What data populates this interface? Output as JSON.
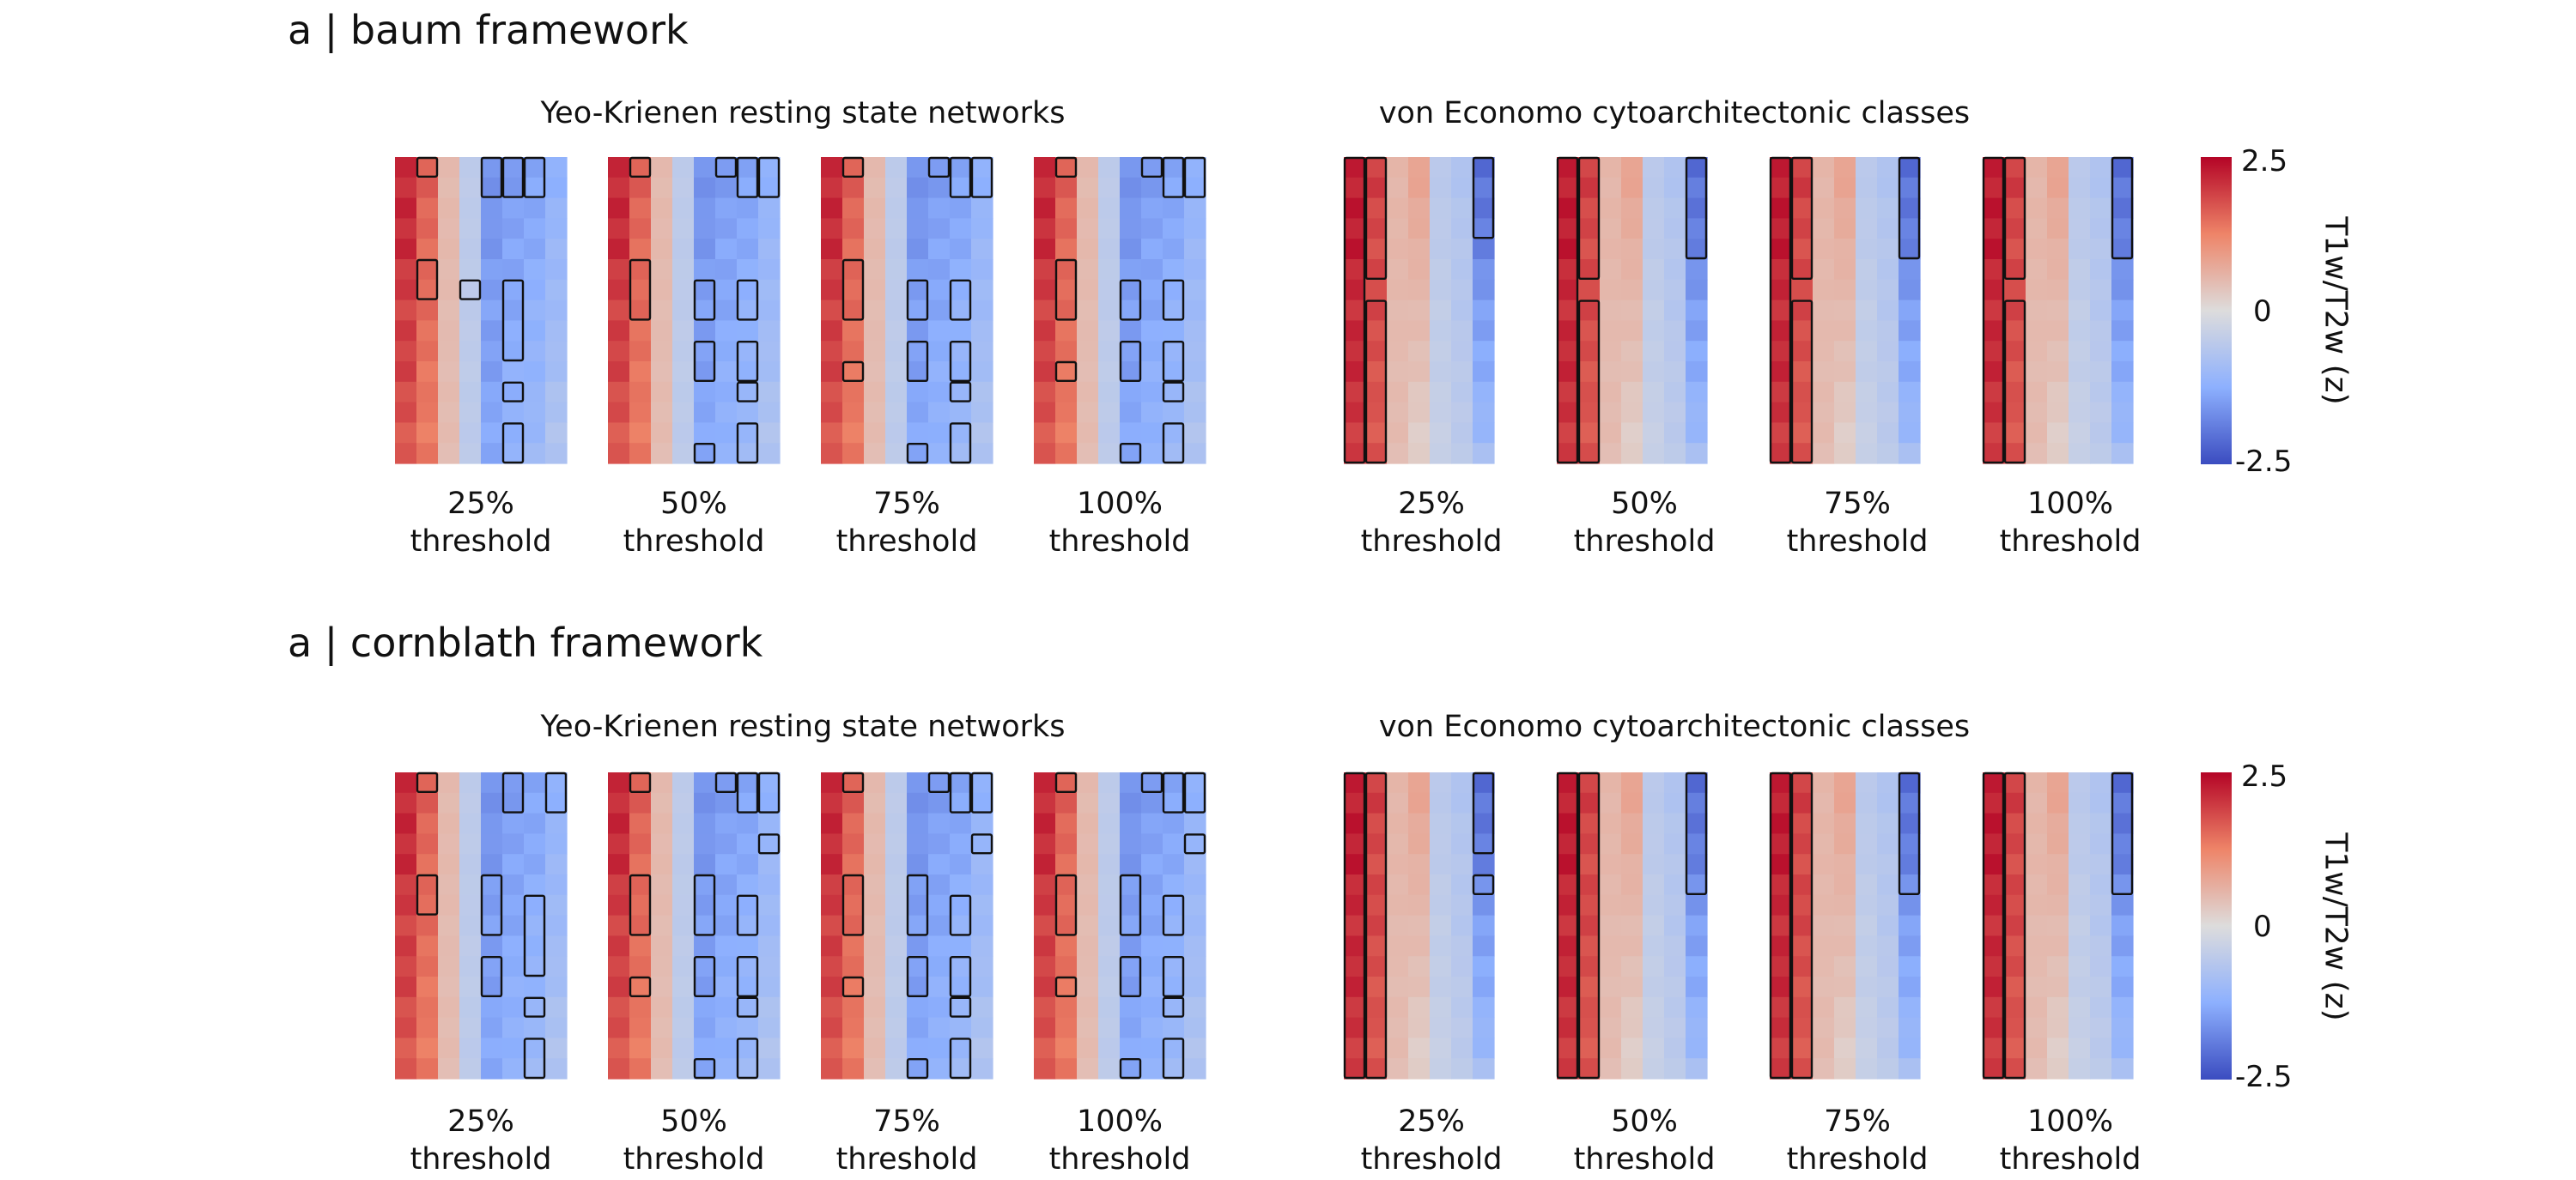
{
  "sections": [
    {
      "title": "a | baum framework",
      "groups": [
        {
          "title": "Yeo-Krienen resting state networks",
          "thresholds": [
            {
              "l1": "25%",
              "l2": "threshold"
            },
            {
              "l1": "50%",
              "l2": "threshold"
            },
            {
              "l1": "75%",
              "l2": "threshold"
            },
            {
              "l1": "100%",
              "l2": "threshold"
            }
          ]
        },
        {
          "title": "von Economo cytoarchitectonic classes",
          "thresholds": [
            {
              "l1": "25%",
              "l2": "threshold"
            },
            {
              "l1": "50%",
              "l2": "threshold"
            },
            {
              "l1": "75%",
              "l2": "threshold"
            },
            {
              "l1": "100%",
              "l2": "threshold"
            }
          ]
        }
      ],
      "colorbar": {
        "max": "2.5",
        "mid": "0",
        "min": "-2.5",
        "label": "T1w/T2w (z)"
      }
    },
    {
      "title": "a | cornblath framework",
      "groups": [
        {
          "title": "Yeo-Krienen resting state networks",
          "thresholds": [
            {
              "l1": "25%",
              "l2": "threshold"
            },
            {
              "l1": "50%",
              "l2": "threshold"
            },
            {
              "l1": "75%",
              "l2": "threshold"
            },
            {
              "l1": "100%",
              "l2": "threshold"
            }
          ]
        },
        {
          "title": "von Economo cytoarchitectonic classes",
          "thresholds": [
            {
              "l1": "25%",
              "l2": "threshold"
            },
            {
              "l1": "50%",
              "l2": "threshold"
            },
            {
              "l1": "75%",
              "l2": "threshold"
            },
            {
              "l1": "100%",
              "l2": "threshold"
            }
          ]
        }
      ],
      "colorbar": {
        "max": "2.5",
        "mid": "0",
        "min": "-2.5",
        "label": "T1w/T2w (z)"
      }
    }
  ],
  "chart_data": {
    "type": "heatmap",
    "colormap": "coolwarm",
    "zlim": [
      -2.5,
      2.5
    ],
    "rows": 15,
    "yeo": {
      "columns": 8,
      "column_profiles": [
        {
          "top": 2.2,
          "bottom": 1.7
        },
        {
          "top": 1.6,
          "bottom": 1.35
        },
        {
          "top": 0.5,
          "bottom": 0.45
        },
        {
          "top": -0.5,
          "bottom": -0.5
        },
        {
          "top": -1.6,
          "bottom": -1.35
        },
        {
          "top": -1.5,
          "bottom": -1.15
        },
        {
          "top": -1.4,
          "bottom": -1.0
        },
        {
          "top": -1.2,
          "bottom": -0.7
        }
      ],
      "baum_outlines": [
        [
          {
            "c": 1,
            "r0": 0,
            "r1": 0
          },
          {
            "c": 1,
            "r0": 5,
            "r1": 6
          },
          {
            "c": 3,
            "r0": 6,
            "r1": 6
          },
          {
            "c": 4,
            "r0": 0,
            "r1": 1
          },
          {
            "c": 5,
            "r0": 0,
            "r1": 1
          },
          {
            "c": 5,
            "r0": 6,
            "r1": 9
          },
          {
            "c": 5,
            "r0": 11,
            "r1": 11
          },
          {
            "c": 5,
            "r0": 13,
            "r1": 14
          },
          {
            "c": 6,
            "r0": 0,
            "r1": 1
          }
        ],
        [
          {
            "c": 1,
            "r0": 0,
            "r1": 0
          },
          {
            "c": 1,
            "r0": 5,
            "r1": 7
          },
          {
            "c": 4,
            "r0": 6,
            "r1": 7
          },
          {
            "c": 4,
            "r0": 9,
            "r1": 10
          },
          {
            "c": 4,
            "r0": 14,
            "r1": 14
          },
          {
            "c": 5,
            "r0": 0,
            "r1": 0
          },
          {
            "c": 6,
            "r0": 0,
            "r1": 1
          },
          {
            "c": 6,
            "r0": 6,
            "r1": 7
          },
          {
            "c": 6,
            "r0": 9,
            "r1": 10
          },
          {
            "c": 6,
            "r0": 11,
            "r1": 11
          },
          {
            "c": 6,
            "r0": 13,
            "r1": 14
          },
          {
            "c": 7,
            "r0": 0,
            "r1": 1
          }
        ],
        [
          {
            "c": 1,
            "r0": 0,
            "r1": 0
          },
          {
            "c": 1,
            "r0": 5,
            "r1": 7
          },
          {
            "c": 1,
            "r0": 10,
            "r1": 10
          },
          {
            "c": 4,
            "r0": 6,
            "r1": 7
          },
          {
            "c": 4,
            "r0": 9,
            "r1": 10
          },
          {
            "c": 4,
            "r0": 14,
            "r1": 14
          },
          {
            "c": 5,
            "r0": 0,
            "r1": 0
          },
          {
            "c": 6,
            "r0": 0,
            "r1": 1
          },
          {
            "c": 6,
            "r0": 6,
            "r1": 7
          },
          {
            "c": 6,
            "r0": 9,
            "r1": 10
          },
          {
            "c": 6,
            "r0": 11,
            "r1": 11
          },
          {
            "c": 6,
            "r0": 13,
            "r1": 14
          },
          {
            "c": 7,
            "r0": 0,
            "r1": 1
          }
        ],
        [
          {
            "c": 1,
            "r0": 0,
            "r1": 0
          },
          {
            "c": 1,
            "r0": 5,
            "r1": 7
          },
          {
            "c": 1,
            "r0": 10,
            "r1": 10
          },
          {
            "c": 4,
            "r0": 6,
            "r1": 7
          },
          {
            "c": 4,
            "r0": 9,
            "r1": 10
          },
          {
            "c": 4,
            "r0": 14,
            "r1": 14
          },
          {
            "c": 5,
            "r0": 0,
            "r1": 0
          },
          {
            "c": 6,
            "r0": 0,
            "r1": 1
          },
          {
            "c": 6,
            "r0": 6,
            "r1": 7
          },
          {
            "c": 6,
            "r0": 9,
            "r1": 10
          },
          {
            "c": 6,
            "r0": 11,
            "r1": 11
          },
          {
            "c": 6,
            "r0": 13,
            "r1": 14
          },
          {
            "c": 7,
            "r0": 0,
            "r1": 1
          }
        ]
      ],
      "cornblath_outlines": [
        [
          {
            "c": 1,
            "r0": 0,
            "r1": 0
          },
          {
            "c": 1,
            "r0": 5,
            "r1": 6
          },
          {
            "c": 4,
            "r0": 5,
            "r1": 7
          },
          {
            "c": 4,
            "r0": 9,
            "r1": 10
          },
          {
            "c": 5,
            "r0": 0,
            "r1": 1
          },
          {
            "c": 6,
            "r0": 6,
            "r1": 9
          },
          {
            "c": 6,
            "r0": 11,
            "r1": 11
          },
          {
            "c": 6,
            "r0": 13,
            "r1": 14
          },
          {
            "c": 7,
            "r0": 0,
            "r1": 1
          }
        ],
        [
          {
            "c": 1,
            "r0": 0,
            "r1": 0
          },
          {
            "c": 1,
            "r0": 5,
            "r1": 7
          },
          {
            "c": 1,
            "r0": 10,
            "r1": 10
          },
          {
            "c": 4,
            "r0": 5,
            "r1": 7
          },
          {
            "c": 4,
            "r0": 9,
            "r1": 10
          },
          {
            "c": 4,
            "r0": 14,
            "r1": 14
          },
          {
            "c": 5,
            "r0": 0,
            "r1": 0
          },
          {
            "c": 6,
            "r0": 0,
            "r1": 1
          },
          {
            "c": 6,
            "r0": 6,
            "r1": 7
          },
          {
            "c": 6,
            "r0": 9,
            "r1": 10
          },
          {
            "c": 6,
            "r0": 11,
            "r1": 11
          },
          {
            "c": 6,
            "r0": 13,
            "r1": 14
          },
          {
            "c": 7,
            "r0": 0,
            "r1": 1
          },
          {
            "c": 7,
            "r0": 3,
            "r1": 3
          }
        ],
        [
          {
            "c": 1,
            "r0": 0,
            "r1": 0
          },
          {
            "c": 1,
            "r0": 5,
            "r1": 7
          },
          {
            "c": 1,
            "r0": 10,
            "r1": 10
          },
          {
            "c": 4,
            "r0": 5,
            "r1": 7
          },
          {
            "c": 4,
            "r0": 9,
            "r1": 10
          },
          {
            "c": 4,
            "r0": 14,
            "r1": 14
          },
          {
            "c": 5,
            "r0": 0,
            "r1": 0
          },
          {
            "c": 6,
            "r0": 0,
            "r1": 1
          },
          {
            "c": 6,
            "r0": 6,
            "r1": 7
          },
          {
            "c": 6,
            "r0": 9,
            "r1": 10
          },
          {
            "c": 6,
            "r0": 11,
            "r1": 11
          },
          {
            "c": 6,
            "r0": 13,
            "r1": 14
          },
          {
            "c": 7,
            "r0": 0,
            "r1": 1
          },
          {
            "c": 7,
            "r0": 3,
            "r1": 3
          }
        ],
        [
          {
            "c": 1,
            "r0": 0,
            "r1": 0
          },
          {
            "c": 1,
            "r0": 5,
            "r1": 7
          },
          {
            "c": 1,
            "r0": 10,
            "r1": 10
          },
          {
            "c": 4,
            "r0": 5,
            "r1": 7
          },
          {
            "c": 4,
            "r0": 9,
            "r1": 10
          },
          {
            "c": 4,
            "r0": 14,
            "r1": 14
          },
          {
            "c": 5,
            "r0": 0,
            "r1": 0
          },
          {
            "c": 6,
            "r0": 0,
            "r1": 1
          },
          {
            "c": 6,
            "r0": 6,
            "r1": 7
          },
          {
            "c": 6,
            "r0": 9,
            "r1": 10
          },
          {
            "c": 6,
            "r0": 11,
            "r1": 11
          },
          {
            "c": 6,
            "r0": 13,
            "r1": 14
          },
          {
            "c": 7,
            "r0": 0,
            "r1": 1
          },
          {
            "c": 7,
            "r0": 3,
            "r1": 3
          }
        ]
      ]
    },
    "von_economo": {
      "columns": 7,
      "column_profiles": [
        {
          "top": 2.3,
          "bottom": 2.0
        },
        {
          "top": 1.9,
          "bottom": 1.7
        },
        {
          "top": 0.55,
          "bottom": 0.45
        },
        {
          "top": 0.8,
          "bottom": 0.2
        },
        {
          "top": -0.55,
          "bottom": -0.35
        },
        {
          "top": -0.7,
          "bottom": -0.5
        },
        {
          "top": -2.1,
          "bottom": -0.9
        }
      ],
      "baum_outlines": [
        [
          {
            "c": 0,
            "r0": 0,
            "r1": 14
          },
          {
            "c": 1,
            "r0": 0,
            "r1": 5
          },
          {
            "c": 1,
            "r0": 7,
            "r1": 14
          },
          {
            "c": 6,
            "r0": 0,
            "r1": 3
          }
        ],
        [
          {
            "c": 0,
            "r0": 0,
            "r1": 14
          },
          {
            "c": 1,
            "r0": 0,
            "r1": 5
          },
          {
            "c": 1,
            "r0": 7,
            "r1": 14
          },
          {
            "c": 6,
            "r0": 0,
            "r1": 4
          }
        ],
        [
          {
            "c": 0,
            "r0": 0,
            "r1": 14
          },
          {
            "c": 1,
            "r0": 0,
            "r1": 5
          },
          {
            "c": 1,
            "r0": 7,
            "r1": 14
          },
          {
            "c": 6,
            "r0": 0,
            "r1": 4
          }
        ],
        [
          {
            "c": 0,
            "r0": 0,
            "r1": 14
          },
          {
            "c": 1,
            "r0": 0,
            "r1": 5
          },
          {
            "c": 1,
            "r0": 7,
            "r1": 14
          },
          {
            "c": 6,
            "r0": 0,
            "r1": 4
          }
        ]
      ],
      "cornblath_outlines": [
        [
          {
            "c": 0,
            "r0": 0,
            "r1": 14
          },
          {
            "c": 1,
            "r0": 0,
            "r1": 14
          },
          {
            "c": 6,
            "r0": 0,
            "r1": 3
          },
          {
            "c": 6,
            "r0": 5,
            "r1": 5
          }
        ],
        [
          {
            "c": 0,
            "r0": 0,
            "r1": 14
          },
          {
            "c": 1,
            "r0": 0,
            "r1": 14
          },
          {
            "c": 6,
            "r0": 0,
            "r1": 5
          }
        ],
        [
          {
            "c": 0,
            "r0": 0,
            "r1": 14
          },
          {
            "c": 1,
            "r0": 0,
            "r1": 14
          },
          {
            "c": 6,
            "r0": 0,
            "r1": 5
          }
        ],
        [
          {
            "c": 0,
            "r0": 0,
            "r1": 14
          },
          {
            "c": 1,
            "r0": 0,
            "r1": 14
          },
          {
            "c": 6,
            "r0": 0,
            "r1": 5
          }
        ]
      ]
    }
  }
}
